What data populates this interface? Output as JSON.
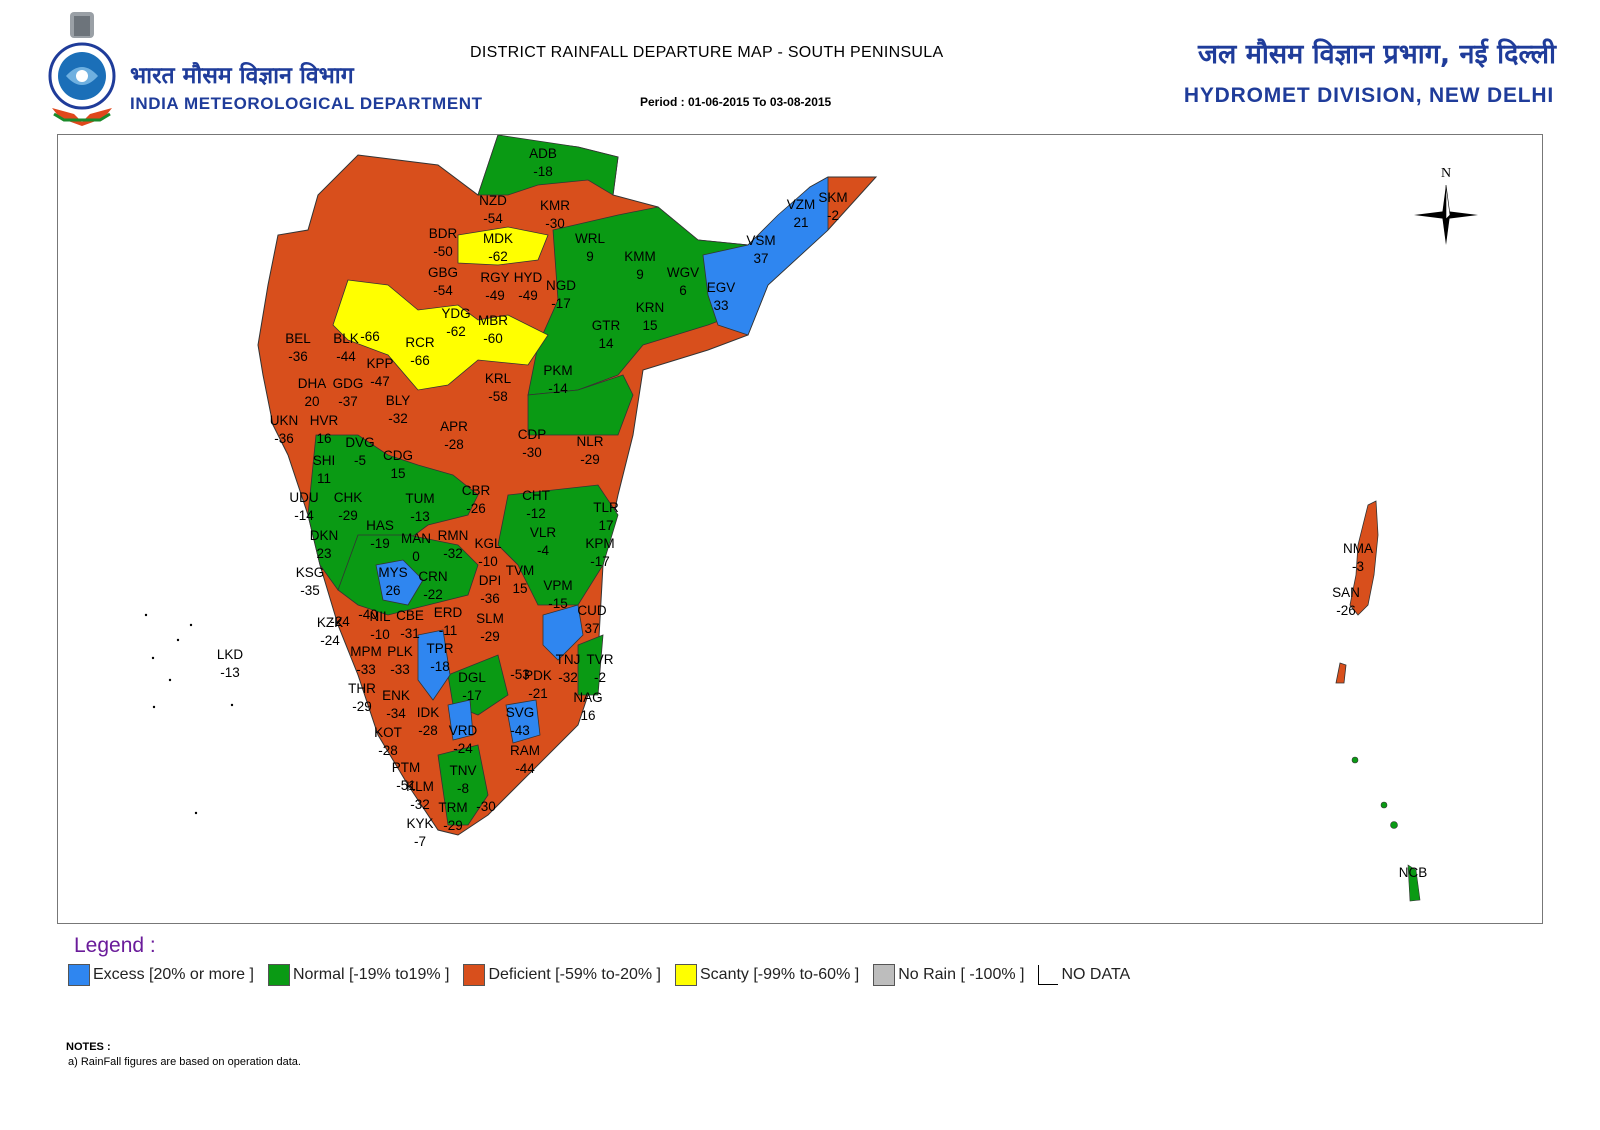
{
  "header": {
    "org_hindi": "भारत मौसम विज्ञान विभाग",
    "org_english": "INDIA METEOROLOGICAL DEPARTMENT",
    "title": "DISTRICT RAINFALL DEPARTURE MAP - SOUTH PENINSULA",
    "period": "Period : 01-06-2015 To 03-08-2015",
    "division_hindi": "जल मौसम विज्ञान प्रभाग, नई दिल्ली",
    "division_english": "HYDROMET DIVISION, NEW DELHI"
  },
  "compass": {
    "label": "N"
  },
  "colors": {
    "excess": "#2f86f0",
    "normal": "#0a9a14",
    "deficient": "#d84f1c",
    "scanty": "#ffff00",
    "no_rain": "#bdbdbd",
    "org_text": "#1f3c9a",
    "legend_heading": "#6a1b9a"
  },
  "legend": {
    "heading": "Legend :",
    "items": [
      {
        "key": "excess",
        "label": "Excess [20% or more ]"
      },
      {
        "key": "normal",
        "label": "Normal [-19%  to19% ]"
      },
      {
        "key": "deficient",
        "label": "Deficient [-59%  to-20% ]"
      },
      {
        "key": "scanty",
        "label": "Scanty [-99%  to-60% ]"
      },
      {
        "key": "no_rain",
        "label": "No Rain [  -100% ]"
      },
      {
        "key": "no_data",
        "label": "NO DATA"
      }
    ]
  },
  "notes": {
    "heading": "NOTES :",
    "items": [
      "a) RainFall figures are based on operation data."
    ]
  },
  "districts": [
    {
      "code": "ADB",
      "value": "-18"
    },
    {
      "code": "NZD",
      "value": "-54"
    },
    {
      "code": "KMR",
      "value": "-30"
    },
    {
      "code": "BDR",
      "value": "-50"
    },
    {
      "code": "MDK",
      "value": "-62"
    },
    {
      "code": "WRL",
      "value": "9"
    },
    {
      "code": "KMM",
      "value": "9"
    },
    {
      "code": "GBG",
      "value": "-54"
    },
    {
      "code": "RGY",
      "value": "-49"
    },
    {
      "code": "HYD",
      "value": "-49"
    },
    {
      "code": "NGD",
      "value": "-17"
    },
    {
      "code": "WGV",
      "value": "6"
    },
    {
      "code": "VZM",
      "value": "21"
    },
    {
      "code": "SKM",
      "value": "-2"
    },
    {
      "code": "VSM",
      "value": "37"
    },
    {
      "code": "EGV",
      "value": "33"
    },
    {
      "code": "",
      "value": "-66"
    },
    {
      "code": "YDG",
      "value": "-62"
    },
    {
      "code": "MBR",
      "value": "-60"
    },
    {
      "code": "KRN",
      "value": "15"
    },
    {
      "code": "GTR",
      "value": "14"
    },
    {
      "code": "BEL",
      "value": "-36"
    },
    {
      "code": "BLK",
      "value": "-44"
    },
    {
      "code": "RCR",
      "value": "-66"
    },
    {
      "code": "KPP",
      "value": "-47"
    },
    {
      "code": "DHA",
      "value": "20"
    },
    {
      "code": "GDG",
      "value": "-37"
    },
    {
      "code": "KRL",
      "value": "-58"
    },
    {
      "code": "PKM",
      "value": "-14"
    },
    {
      "code": "BLY",
      "value": "-32"
    },
    {
      "code": "UKN",
      "value": "-36"
    },
    {
      "code": "HVR",
      "value": "16"
    },
    {
      "code": "DVG",
      "value": "-5"
    },
    {
      "code": "APR",
      "value": "-28"
    },
    {
      "code": "CDP",
      "value": "-30"
    },
    {
      "code": "NLR",
      "value": "-29"
    },
    {
      "code": "SHI",
      "value": "11"
    },
    {
      "code": "CDG",
      "value": "15"
    },
    {
      "code": "UDU",
      "value": "-14"
    },
    {
      "code": "CHK",
      "value": "-29"
    },
    {
      "code": "TUM",
      "value": "-13"
    },
    {
      "code": "CBR",
      "value": "-26"
    },
    {
      "code": "CHT",
      "value": "-12"
    },
    {
      "code": "TLR",
      "value": "17"
    },
    {
      "code": "HAS",
      "value": "-19"
    },
    {
      "code": "DKN",
      "value": "23"
    },
    {
      "code": "MAN",
      "value": "0"
    },
    {
      "code": "RMN",
      "value": "-32"
    },
    {
      "code": "KGL",
      "value": "-10"
    },
    {
      "code": "VLR",
      "value": "-4"
    },
    {
      "code": "KPM",
      "value": "-17"
    },
    {
      "code": "KSG",
      "value": "-35"
    },
    {
      "code": "MYS",
      "value": "26"
    },
    {
      "code": "CRN",
      "value": "-22"
    },
    {
      "code": "DPI",
      "value": "-36"
    },
    {
      "code": "TVM",
      "value": "15"
    },
    {
      "code": "VPM",
      "value": "-15"
    },
    {
      "code": "",
      "value": "-24"
    },
    {
      "code": "",
      "value": "-40"
    },
    {
      "code": "CUD",
      "value": "37"
    },
    {
      "code": "KZK",
      "value": "-24"
    },
    {
      "code": "NIL",
      "value": "-10"
    },
    {
      "code": "CBE",
      "value": "-31"
    },
    {
      "code": "ERD",
      "value": "-11"
    },
    {
      "code": "SLM",
      "value": "-29"
    },
    {
      "code": "LKD",
      "value": "-13"
    },
    {
      "code": "MPM",
      "value": "-33"
    },
    {
      "code": "PLK",
      "value": "-33"
    },
    {
      "code": "TPR",
      "value": "-18"
    },
    {
      "code": "",
      "value": "-53"
    },
    {
      "code": "TNJ",
      "value": "-32"
    },
    {
      "code": "TVR",
      "value": "-2"
    },
    {
      "code": "THR",
      "value": "-29"
    },
    {
      "code": "ENK",
      "value": "-34"
    },
    {
      "code": "DGL",
      "value": "-17"
    },
    {
      "code": "PDK",
      "value": "-21"
    },
    {
      "code": "NAG",
      "value": "16"
    },
    {
      "code": "IDK",
      "value": "-28"
    },
    {
      "code": "SVG",
      "value": "-43"
    },
    {
      "code": "KOT",
      "value": "-28"
    },
    {
      "code": "VRD",
      "value": "-24"
    },
    {
      "code": "RAM",
      "value": "-44"
    },
    {
      "code": "PTM",
      "value": "-51"
    },
    {
      "code": "TNV",
      "value": "-8"
    },
    {
      "code": "",
      "value": "-30"
    },
    {
      "code": "KLM",
      "value": "-32"
    },
    {
      "code": "TRM",
      "value": "-29"
    },
    {
      "code": "KYK",
      "value": "-7"
    },
    {
      "code": "NMA",
      "value": "-3"
    },
    {
      "code": "SAN",
      "value": "-26"
    },
    {
      "code": "NCB",
      "value": ""
    }
  ]
}
